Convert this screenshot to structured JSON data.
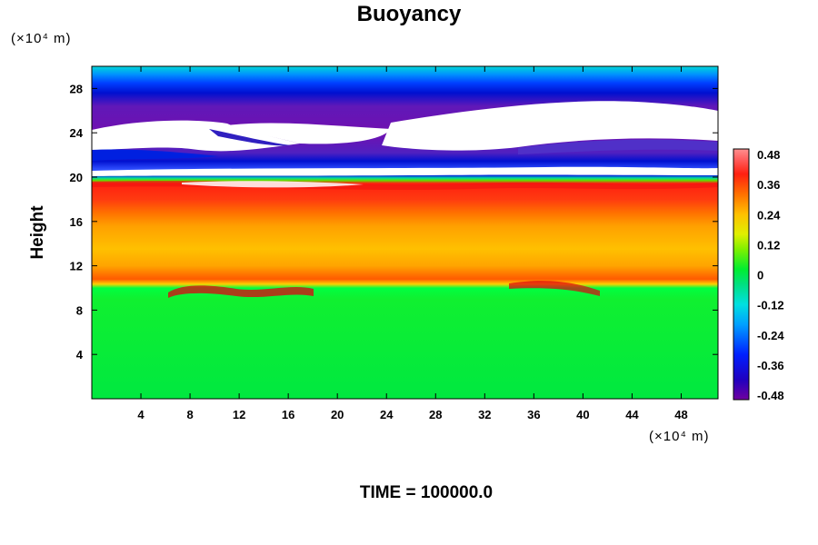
{
  "chart_data": {
    "type": "heatmap",
    "title": "Buoyancy",
    "ylabel": "Height",
    "xlabel": "",
    "y_unit": "(×10⁴ m)",
    "x_unit": "(×10⁴ m)",
    "footer": "TIME = 100000.0",
    "xlim": [
      0,
      51
    ],
    "ylim": [
      0,
      30
    ],
    "x_ticks": [
      4,
      8,
      12,
      16,
      20,
      24,
      28,
      32,
      36,
      40,
      44,
      48
    ],
    "y_ticks": [
      4,
      8,
      12,
      16,
      20,
      24,
      28
    ],
    "colorbar": {
      "min": -0.48,
      "max": 0.48,
      "tick_values": [
        0.48,
        0.36,
        0.24,
        0.12,
        0,
        -0.12,
        -0.24,
        -0.36,
        -0.48
      ],
      "tick_labels": [
        "0.48",
        "0.36",
        "0.24",
        "0.12",
        "0",
        "-0.12",
        "-0.24",
        "-0.36",
        "-0.48"
      ]
    },
    "field_layers": [
      {
        "y_from": 0,
        "y_to": 10,
        "value": 0.0
      },
      {
        "y_from": 10,
        "y_to": 12.5,
        "value": 0.28
      },
      {
        "y_from": 12.5,
        "y_to": 16,
        "value": 0.26
      },
      {
        "y_from": 16,
        "y_to": 19.6,
        "value": 0.38
      },
      {
        "y_from": 19.6,
        "y_to": 20,
        "value": 0.02
      },
      {
        "y_from": 20,
        "y_to": 21,
        "value": -0.4
      },
      {
        "y_from": 21,
        "y_to": 22.5,
        "value": -0.38
      },
      {
        "y_from": 22.5,
        "y_to": 27.5,
        "value": -0.48
      },
      {
        "y_from": 27.5,
        "y_to": 29,
        "value": -0.38
      },
      {
        "y_from": 29,
        "y_to": 30,
        "value": -0.2
      }
    ],
    "colors": {
      "green": "#00ee33",
      "red": "#ff2010",
      "blue": "#0010e0",
      "purple": "#7010b0",
      "cyan": "#00e0e0",
      "white_region": "#ffffff"
    }
  }
}
